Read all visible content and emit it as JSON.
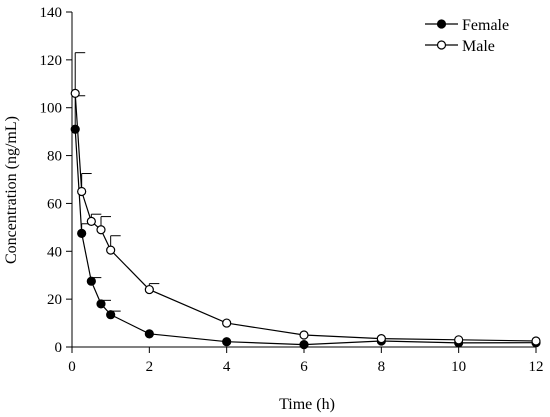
{
  "chart_data": {
    "type": "line",
    "title": "",
    "xlabel": "Time (h)",
    "ylabel": "Concentration (ng/mL)",
    "xlim": [
      0,
      12
    ],
    "ylim": [
      0,
      140
    ],
    "xticks": [
      0,
      2,
      4,
      6,
      8,
      10,
      12
    ],
    "yticks": [
      0,
      20,
      40,
      60,
      80,
      100,
      120,
      140
    ],
    "grid": false,
    "legend_position": "top-right",
    "series": [
      {
        "name": "Female",
        "marker": "filled-circle",
        "color": "#000000",
        "x": [
          0.083,
          0.25,
          0.5,
          0.75,
          1,
          2,
          4,
          6,
          8,
          10,
          12
        ],
        "y": [
          91,
          47.5,
          27.5,
          18,
          13.5,
          5.5,
          2.2,
          1,
          2.5,
          1.7,
          1.8
        ],
        "error_upper": [
          14,
          4,
          1.5,
          1.5,
          1.5,
          0,
          0,
          0,
          0,
          0,
          0
        ]
      },
      {
        "name": "Male",
        "marker": "open-circle",
        "color": "#000000",
        "x": [
          0.083,
          0.25,
          0.5,
          0.75,
          1,
          2,
          4,
          6,
          8,
          10,
          12
        ],
        "y": [
          106,
          65,
          52.5,
          49,
          40.5,
          24,
          10,
          5,
          3.5,
          3,
          2.5
        ],
        "error_upper": [
          17,
          7.5,
          3,
          5.5,
          6,
          2.5,
          0,
          0,
          0,
          0,
          0
        ]
      }
    ]
  }
}
